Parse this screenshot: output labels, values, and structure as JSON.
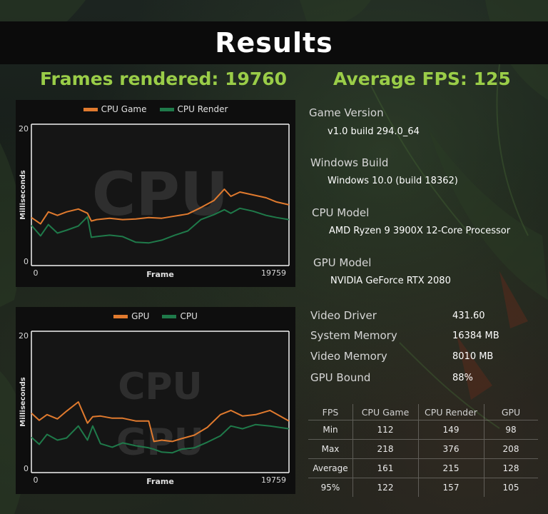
{
  "page": {
    "title": "Results",
    "frames_rendered": "Frames rendered: 19760",
    "average_fps": "Average FPS: 125"
  },
  "colors": {
    "accent_green": "#9acd48",
    "cpu_game": "#e07a2e",
    "cpu_render": "#1f7a4a",
    "gpu": "#e07a2e",
    "cpu": "#1f7a4a"
  },
  "chart_data": [
    {
      "type": "line",
      "legend": [
        "CPU Game",
        "CPU Render"
      ],
      "watermark": "CPU",
      "ylabel": "Milliseconds",
      "xlabel": "Frame",
      "xlim": [
        0,
        19759
      ],
      "ylim": [
        0,
        20
      ],
      "y_tick_labels": [
        "20",
        "0"
      ],
      "x_tick_labels": [
        "0",
        "19759"
      ],
      "x": [
        0,
        700,
        1300,
        2000,
        2700,
        3600,
        4300,
        4600,
        5000,
        6000,
        7000,
        8000,
        9000,
        10000,
        11000,
        12000,
        13000,
        14000,
        14800,
        15300,
        16000,
        17000,
        18000,
        18800,
        19759
      ],
      "series": [
        {
          "name": "CPU Game",
          "values": [
            6.8,
            5.9,
            7.6,
            7.1,
            7.6,
            8.0,
            7.4,
            6.3,
            6.5,
            6.7,
            6.5,
            6.6,
            6.8,
            6.7,
            7.0,
            7.3,
            8.2,
            9.2,
            10.8,
            9.8,
            10.4,
            10.0,
            9.6,
            9.0,
            8.6
          ]
        },
        {
          "name": "CPU Render",
          "values": [
            5.7,
            4.2,
            5.8,
            4.6,
            5.0,
            5.6,
            6.9,
            4.0,
            4.1,
            4.3,
            4.1,
            3.3,
            3.2,
            3.6,
            4.3,
            4.9,
            6.5,
            7.2,
            7.9,
            7.4,
            8.1,
            7.7,
            7.1,
            6.8,
            6.5
          ]
        }
      ]
    },
    {
      "type": "line",
      "legend": [
        "GPU",
        "CPU"
      ],
      "watermark": [
        "CPU",
        "GPU"
      ],
      "ylabel": "Milliseconds",
      "xlabel": "Frame",
      "xlim": [
        0,
        19759
      ],
      "ylim": [
        0,
        20
      ],
      "y_tick_labels": [
        "20",
        "0"
      ],
      "x_tick_labels": [
        "0",
        "19759"
      ],
      "x": [
        0,
        600,
        1200,
        2000,
        2700,
        3600,
        4300,
        4700,
        5300,
        6200,
        7000,
        8000,
        9000,
        9400,
        10000,
        10800,
        11500,
        12500,
        13500,
        14500,
        15300,
        16200,
        17200,
        18300,
        19759
      ],
      "series": [
        {
          "name": "GPU",
          "values": [
            8.4,
            7.4,
            8.2,
            7.6,
            8.7,
            10.0,
            7.0,
            7.9,
            8.0,
            7.7,
            7.7,
            7.3,
            7.3,
            4.4,
            4.6,
            4.4,
            4.8,
            5.3,
            6.4,
            8.2,
            8.8,
            8.0,
            8.2,
            8.8,
            7.3
          ]
        },
        {
          "name": "CPU",
          "values": [
            5.0,
            4.0,
            5.4,
            4.6,
            4.9,
            6.6,
            4.6,
            6.6,
            4.1,
            3.6,
            4.2,
            3.8,
            3.5,
            3.3,
            2.9,
            2.8,
            3.3,
            3.5,
            4.3,
            5.2,
            6.6,
            6.2,
            6.8,
            6.6,
            6.2
          ]
        }
      ]
    }
  ],
  "info": {
    "game_version_label": "Game Version",
    "game_version": "v1.0 build 294.0_64",
    "windows_build_label": "Windows Build",
    "windows_build": "Windows 10.0 (build 18362)",
    "cpu_model_label": "CPU Model",
    "cpu_model": "AMD Ryzen 9 3900X 12-Core Processor",
    "gpu_model_label": "GPU Model",
    "gpu_model": "NVIDIA GeForce RTX 2080",
    "video_driver_label": "Video Driver",
    "video_driver": "431.60",
    "system_memory_label": "System Memory",
    "system_memory": "16384 MB",
    "video_memory_label": "Video Memory",
    "video_memory": "8010 MB",
    "gpu_bound_label": "GPU Bound",
    "gpu_bound": "88%"
  },
  "stats": {
    "headers": [
      "FPS",
      "CPU Game",
      "CPU Render",
      "GPU"
    ],
    "rows": [
      [
        "Min",
        "112",
        "149",
        "98"
      ],
      [
        "Max",
        "218",
        "376",
        "208"
      ],
      [
        "Average",
        "161",
        "215",
        "128"
      ],
      [
        "95%",
        "122",
        "157",
        "105"
      ]
    ]
  }
}
